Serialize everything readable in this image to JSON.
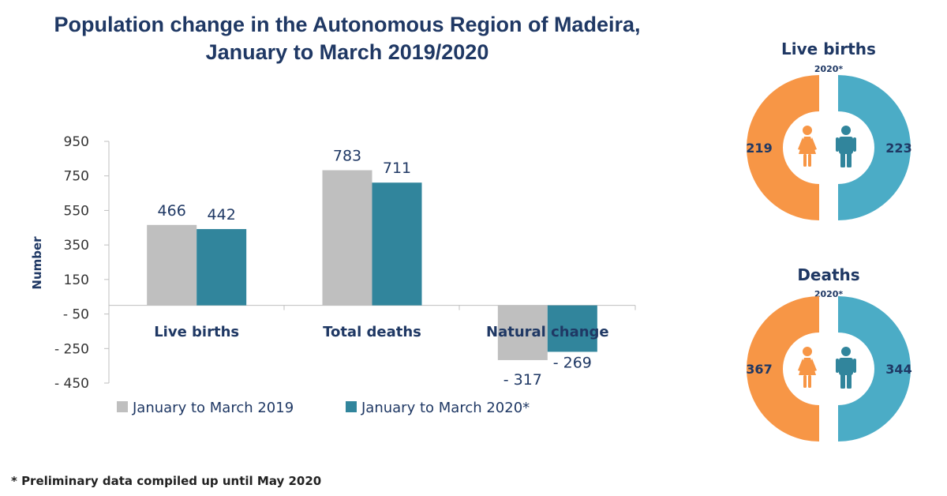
{
  "title_line1": "Population change in the Autonomous Region of Madeira,",
  "title_line2": "January to March 2019/2020",
  "footnote": "* Preliminary data compiled up until May 2020",
  "colors": {
    "series_2019": "#bfbfbf",
    "series_2020": "#31859c",
    "female": "#f79646",
    "male": "#4bacc6",
    "text": "#1f3864"
  },
  "chart_data": [
    {
      "type": "bar",
      "title": "",
      "ylabel": "Number",
      "ylim": [
        -450,
        950
      ],
      "yticks": [
        950,
        750,
        550,
        350,
        150,
        -50,
        -250,
        -450
      ],
      "ytick_labels": [
        "950",
        "750",
        "550",
        "350",
        "150",
        "- 50",
        "- 250",
        "- 450"
      ],
      "categories": [
        "Live births",
        "Total deaths",
        "Natural change"
      ],
      "series": [
        {
          "name": "January to March 2019",
          "values": [
            466,
            783,
            -317
          ],
          "labels": [
            "466",
            "783",
            "- 317"
          ]
        },
        {
          "name": "January to March 2020*",
          "values": [
            442,
            711,
            -269
          ],
          "labels": [
            "442",
            "711",
            "- 269"
          ]
        }
      ],
      "legend": "bottom-left",
      "grid": false
    },
    {
      "type": "pie",
      "title": "Live births",
      "subtitle": "2020*",
      "slices": [
        {
          "label": "Female",
          "value": 219,
          "display": "219",
          "icon": "female-icon"
        },
        {
          "label": "Male",
          "value": 223,
          "display": "223",
          "icon": "male-icon"
        }
      ]
    },
    {
      "type": "pie",
      "title": "Deaths",
      "subtitle": "2020*",
      "slices": [
        {
          "label": "Female",
          "value": 367,
          "display": "367",
          "icon": "female-icon"
        },
        {
          "label": "Male",
          "value": 344,
          "display": "344",
          "icon": "male-icon"
        }
      ]
    }
  ]
}
